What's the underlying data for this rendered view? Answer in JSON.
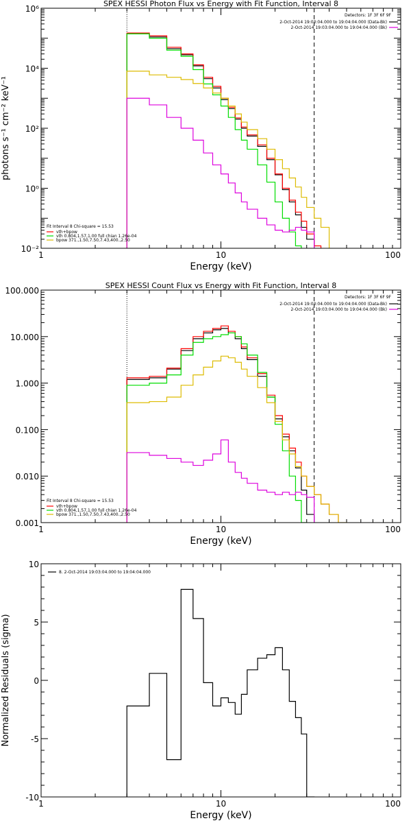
{
  "colors": {
    "data": "#000000",
    "total": "#ff0000",
    "vth": "#00dd00",
    "bpow": "#ddbb00",
    "bkg": "#dd00dd"
  },
  "chart_data": [
    {
      "type": "line",
      "title": "SPEX HESSI Photon Flux vs Energy with Fit Function, Interval 8",
      "xlabel": "Energy (keV)",
      "ylabel": "photons s⁻¹ cm⁻² keV⁻¹",
      "xscale": "log",
      "yscale": "log",
      "xlim": [
        1,
        100
      ],
      "ylim": [
        0.01,
        1000000
      ],
      "xticks": [
        {
          "v": 1,
          "label": "1"
        },
        {
          "v": 10,
          "label": "10"
        },
        {
          "v": 100,
          "label": "100"
        }
      ],
      "yticks": [
        {
          "v": 0.01,
          "label": "10⁻²"
        },
        {
          "v": 1,
          "label": "10⁰"
        },
        {
          "v": 100,
          "label": "10²"
        },
        {
          "v": 10000,
          "label": "10⁴"
        },
        {
          "v": 1000000,
          "label": "10⁶"
        }
      ],
      "vlines": [
        {
          "x": 3,
          "style": "dotted"
        },
        {
          "x": 33,
          "style": "dashed"
        }
      ],
      "legend_top": {
        "position": "top-right",
        "header": "Detectors: 1F 3F 6F 9F",
        "entries": [
          {
            "text": "2-Oct-2014 19:03:04.000 to 19:04:04.000 (Data-Bk)",
            "color": "#000000"
          },
          {
            "text": "2-Oct-2014 19:03:04.000 to 19:04:04.000 (Bk)",
            "color": "#dd00dd"
          }
        ]
      },
      "legend_bottom": {
        "position": "bottom-left",
        "header": "Fit Interval 8   Chi-square = 15.53",
        "entries": [
          {
            "text": "vth+bpow",
            "color": "#ff0000"
          },
          {
            "text": "vth 0.804,1.57,1.00  full chian 1.26e-04",
            "color": "#00dd00"
          },
          {
            "text": "bpow 371.,1.50,7.50,7.43,400.,2.50",
            "color": "#ddbb00"
          }
        ]
      },
      "edges": [
        3,
        4,
        5,
        6,
        7,
        8,
        9,
        10,
        11,
        12,
        13,
        14,
        16,
        18,
        20,
        22,
        24,
        26,
        28,
        30,
        33,
        36,
        40
      ],
      "series": [
        {
          "name": "Data-Bk",
          "color": "#000000",
          "values": [
            140000,
            110000,
            45000,
            28000,
            12000,
            4500,
            2200,
            900,
            450,
            200,
            100,
            55,
            25,
            9,
            2.8,
            0.9,
            0.35,
            0.13,
            0.05,
            0.02
          ]
        },
        {
          "name": "vth+bpow",
          "color": "#ff0000",
          "values": [
            150000,
            120000,
            50000,
            30000,
            13000,
            5000,
            2500,
            1000,
            500,
            220,
            110,
            60,
            28,
            10,
            3,
            1,
            0.4,
            0.16,
            0.08,
            0.03,
            0.012,
            0.006
          ]
        },
        {
          "name": "vth",
          "color": "#00dd00",
          "values": [
            140000,
            100000,
            40000,
            25000,
            9000,
            3000,
            1300,
            550,
            230,
            90,
            40,
            20,
            6,
            1.6,
            0.35,
            0.1,
            0.035,
            0.012,
            0.004
          ]
        },
        {
          "name": "bpow",
          "color": "#ddbb00",
          "values": [
            8000,
            6000,
            5000,
            4200,
            3100,
            2200,
            1500,
            1000,
            550,
            300,
            160,
            90,
            45,
            20,
            9,
            4.5,
            2.2,
            1.1,
            0.5,
            0.23,
            0.1,
            0.05
          ]
        },
        {
          "name": "Bk",
          "color": "#dd00dd",
          "values": [
            1000,
            600,
            230,
            100,
            40,
            15,
            6,
            3,
            1.5,
            0.7,
            0.35,
            0.2,
            0.1,
            0.06,
            0.04,
            0.035,
            0.04,
            0.05,
            0.04,
            0.035
          ]
        }
      ]
    },
    {
      "type": "line",
      "title": "SPEX HESSI Count Flux vs Energy with Fit Function, Interval 8",
      "xlabel": "Energy (keV)",
      "ylabel": "",
      "xscale": "log",
      "yscale": "log",
      "xlim": [
        1,
        100
      ],
      "ylim": [
        0.001,
        100
      ],
      "xticks": [
        {
          "v": 1,
          "label": "1"
        },
        {
          "v": 10,
          "label": "10"
        },
        {
          "v": 100,
          "label": "100"
        }
      ],
      "yticks": [
        {
          "v": 0.001,
          "label": "0.001"
        },
        {
          "v": 0.01,
          "label": "0.010"
        },
        {
          "v": 0.1,
          "label": "0.100"
        },
        {
          "v": 1,
          "label": "1.000"
        },
        {
          "v": 10,
          "label": "10.000"
        },
        {
          "v": 100,
          "label": "100.000"
        }
      ],
      "vlines": [
        {
          "x": 3,
          "style": "dotted"
        },
        {
          "x": 33,
          "style": "dashed"
        }
      ],
      "legend_top": {
        "position": "top-right",
        "header": "Detectors: 1F 3F 6F 9F",
        "entries": [
          {
            "text": "2-Oct-2014 19:03:04.000 to 19:04:04.000 (Data-Bk)",
            "color": "#000000"
          },
          {
            "text": "2-Oct-2014 19:03:04.000 to 19:04:04.000 (Bk)",
            "color": "#dd00dd"
          }
        ]
      },
      "legend_bottom": {
        "position": "bottom-left",
        "header": "Fit Interval 8   Chi-square = 15.53",
        "entries": [
          {
            "text": "vth+bpow",
            "color": "#ff0000"
          },
          {
            "text": "vth 0.804,1.57,1.00  full chian 1.26e-04",
            "color": "#00dd00"
          },
          {
            "text": "bpow 371.,1.50,7.50,7.43,400.,2.50",
            "color": "#ddbb00"
          }
        ]
      },
      "edges": [
        3,
        4,
        5,
        6,
        7,
        8,
        9,
        10,
        11,
        12,
        13,
        14,
        16,
        18,
        20,
        22,
        24,
        26,
        28,
        30,
        33,
        36,
        40,
        45,
        50
      ],
      "series": [
        {
          "name": "Data-Bk",
          "color": "#000000",
          "values": [
            1.2,
            1.3,
            2.0,
            5.0,
            9.0,
            12,
            14,
            15,
            12,
            9,
            5.5,
            3.2,
            1.4,
            0.5,
            0.17,
            0.07,
            0.035,
            0.015,
            0.005,
            0.0015
          ]
        },
        {
          "name": "vth+bpow",
          "color": "#ff0000",
          "values": [
            1.3,
            1.4,
            2.1,
            5.5,
            10,
            13,
            15,
            17,
            13,
            10,
            6,
            3.5,
            1.6,
            0.55,
            0.2,
            0.08,
            0.04,
            0.02,
            0.01,
            0.006,
            0.004,
            0.0025,
            0.0015
          ]
        },
        {
          "name": "vth",
          "color": "#00dd00",
          "values": [
            0.9,
            1.0,
            1.5,
            4.0,
            7.5,
            9,
            10,
            11,
            12,
            10,
            7,
            4,
            1.7,
            0.5,
            0.13,
            0.035,
            0.01,
            0.003,
            0.001
          ]
        },
        {
          "name": "bpow",
          "color": "#ddbb00",
          "values": [
            0.38,
            0.4,
            0.5,
            0.9,
            1.5,
            2.2,
            3.0,
            3.8,
            3.5,
            2.8,
            2.0,
            1.4,
            0.8,
            0.38,
            0.15,
            0.06,
            0.03,
            0.016,
            0.01,
            0.006,
            0.004,
            0.0025,
            0.0015,
            0.001
          ]
        },
        {
          "name": "Bk",
          "color": "#dd00dd",
          "values": [
            0.032,
            0.028,
            0.024,
            0.02,
            0.017,
            0.022,
            0.03,
            0.06,
            0.02,
            0.012,
            0.009,
            0.007,
            0.005,
            0.0045,
            0.004,
            0.0045,
            0.004,
            0.0045,
            0.004,
            0.0035
          ]
        }
      ]
    },
    {
      "type": "line",
      "title": "",
      "xlabel": "Energy (keV)",
      "ylabel": "Normalized Residuals (sigma)",
      "xscale": "log",
      "yscale": "linear",
      "xlim": [
        1,
        100
      ],
      "ylim": [
        -10,
        10
      ],
      "xticks": [
        {
          "v": 1,
          "label": "1"
        },
        {
          "v": 10,
          "label": "10"
        },
        {
          "v": 100,
          "label": "100"
        }
      ],
      "yticks": [
        {
          "v": -10,
          "label": "-10"
        },
        {
          "v": -5,
          "label": "-5"
        },
        {
          "v": 0,
          "label": "0"
        },
        {
          "v": 5,
          "label": "5"
        },
        {
          "v": 10,
          "label": "10"
        }
      ],
      "vlines": [],
      "legend_top": {
        "position": "top-left",
        "header": "",
        "entries": [
          {
            "text": "8.  2-Oct-2014 19:03:04.000 to 19:04:04.000",
            "color": "#000000"
          }
        ]
      },
      "legend_bottom": null,
      "edges": [
        3,
        4,
        5,
        6,
        7,
        8,
        9,
        10,
        11,
        12,
        13,
        14,
        16,
        18,
        20,
        22,
        24,
        26,
        28,
        30,
        33
      ],
      "series": [
        {
          "name": "",
          "color": "#000000",
          "values": [
            -2.2,
            0.6,
            -6.8,
            7.8,
            5.3,
            -0.2,
            -2.2,
            -1.5,
            -1.9,
            -2.9,
            -1.2,
            0.9,
            1.9,
            2.2,
            2.8,
            0.9,
            -1.8,
            -3.2,
            -4.6,
            -10
          ]
        }
      ]
    }
  ]
}
